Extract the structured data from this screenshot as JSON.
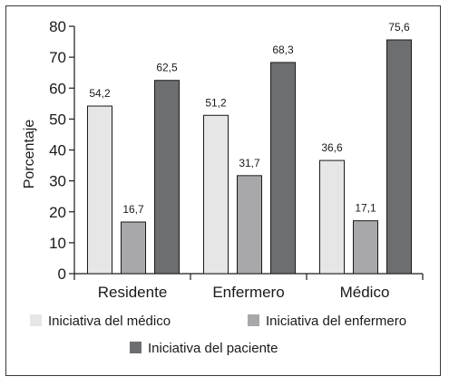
{
  "chart_data": {
    "type": "bar",
    "ylabel": "Porcentaje",
    "ylim": [
      0,
      80
    ],
    "yticks": [
      0,
      10,
      20,
      30,
      40,
      50,
      60,
      70,
      80
    ],
    "categories": [
      "Residente",
      "Enfermero",
      "Médico"
    ],
    "series": [
      {
        "name": "Iniciativa del médico",
        "values": [
          54.2,
          51.2,
          36.6
        ],
        "labels": [
          "54,2",
          "51,2",
          "36,6"
        ],
        "color": "#e6e6e6"
      },
      {
        "name": "Iniciativa del enfermero",
        "values": [
          16.7,
          31.7,
          17.1
        ],
        "labels": [
          "16,7",
          "31,7",
          "17,1"
        ],
        "color": "#a8a8aa"
      },
      {
        "name": "Iniciativa del paciente",
        "values": [
          62.5,
          68.3,
          75.6
        ],
        "labels": [
          "62,5",
          "68,3",
          "75,6"
        ],
        "color": "#6d6e70"
      }
    ],
    "grid": false,
    "legend_position": "bottom"
  }
}
